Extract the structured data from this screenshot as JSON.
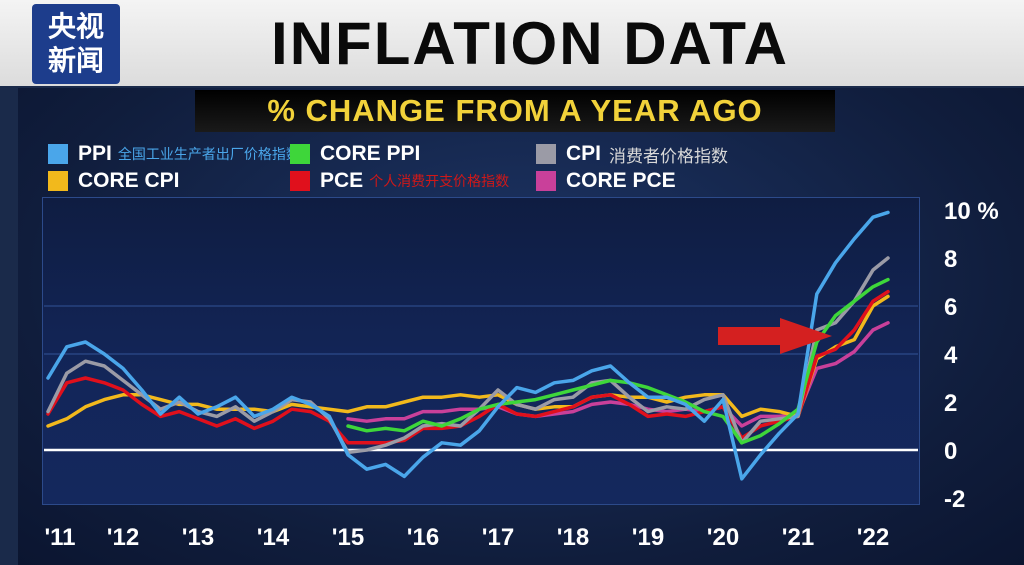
{
  "logo": {
    "line1": "央视",
    "line2": "新闻"
  },
  "title": "INFLATION DATA",
  "chart_data": {
    "type": "line",
    "title": "INFLATION DATA",
    "subtitle": "% CHANGE FROM A YEAR AGO",
    "xlabel": "",
    "ylabel": "",
    "xlim": [
      2011,
      2022.6
    ],
    "ylim": [
      -2,
      10
    ],
    "y_ticks": [
      -2,
      0,
      2,
      4,
      6,
      8,
      10
    ],
    "y_tick_labels": [
      "-2",
      "0",
      "2",
      "4",
      "6",
      "8",
      "10 %"
    ],
    "x_ticks": [
      2011,
      2012,
      2013,
      2014,
      2015,
      2016,
      2017,
      2018,
      2019,
      2020,
      2021,
      2022
    ],
    "x_tick_labels": [
      "'11",
      "'12",
      "'13",
      "'14",
      "'15",
      "'16",
      "'17",
      "'18",
      "'19",
      "'20",
      "'21",
      "'22"
    ],
    "grid": true,
    "legend_position": "top",
    "annotation": {
      "type": "arrow",
      "color": "#d42020",
      "points_to": "2021 surge"
    },
    "series": [
      {
        "name": "PPI",
        "name_zh": "全国工业生产者出厂价格指数",
        "color": "#4aa6ea",
        "x": [
          2011.0,
          2011.25,
          2011.5,
          2011.75,
          2012.0,
          2012.25,
          2012.5,
          2012.75,
          2013.0,
          2013.25,
          2013.5,
          2013.75,
          2014.0,
          2014.25,
          2014.5,
          2014.75,
          2015.0,
          2015.25,
          2015.5,
          2015.75,
          2016.0,
          2016.25,
          2016.5,
          2016.75,
          2017.0,
          2017.25,
          2017.5,
          2017.75,
          2018.0,
          2018.25,
          2018.5,
          2018.75,
          2019.0,
          2019.25,
          2019.5,
          2019.75,
          2020.0,
          2020.25,
          2020.5,
          2020.75,
          2021.0,
          2021.25,
          2021.5,
          2021.75,
          2022.0,
          2022.2
        ],
        "y": [
          3.0,
          4.3,
          4.5,
          4.0,
          3.4,
          2.5,
          1.5,
          2.2,
          1.5,
          1.8,
          2.2,
          1.4,
          1.7,
          2.2,
          1.9,
          1.4,
          -0.2,
          -0.8,
          -0.6,
          -1.1,
          -0.3,
          0.3,
          0.2,
          0.8,
          1.8,
          2.6,
          2.4,
          2.8,
          2.9,
          3.3,
          3.5,
          2.8,
          2.2,
          2.2,
          1.9,
          1.2,
          2.1,
          -1.2,
          -0.2,
          0.7,
          1.5,
          6.5,
          7.8,
          8.8,
          9.7,
          9.9
        ]
      },
      {
        "name": "CORE PPI",
        "name_zh": "",
        "color": "#3ed63a",
        "x": [
          2015.0,
          2015.25,
          2015.5,
          2015.75,
          2016.0,
          2016.25,
          2016.5,
          2016.75,
          2017.0,
          2017.25,
          2017.5,
          2017.75,
          2018.0,
          2018.25,
          2018.5,
          2018.75,
          2019.0,
          2019.25,
          2019.5,
          2019.75,
          2020.0,
          2020.25,
          2020.5,
          2020.75,
          2021.0,
          2021.25,
          2021.5,
          2021.75,
          2022.0,
          2022.2
        ],
        "y": [
          1.0,
          0.8,
          0.9,
          0.8,
          1.2,
          1.0,
          1.3,
          1.7,
          1.9,
          2.0,
          2.1,
          2.3,
          2.5,
          2.7,
          2.9,
          2.8,
          2.6,
          2.3,
          2.0,
          1.6,
          1.4,
          0.3,
          0.6,
          1.1,
          1.7,
          4.5,
          5.6,
          6.2,
          6.8,
          7.1
        ]
      },
      {
        "name": "CPI",
        "name_zh": "消费者价格指数",
        "color": "#9b9ba6",
        "x": [
          2011.0,
          2011.25,
          2011.5,
          2011.75,
          2012.0,
          2012.25,
          2012.5,
          2012.75,
          2013.0,
          2013.25,
          2013.5,
          2013.75,
          2014.0,
          2014.25,
          2014.5,
          2014.75,
          2015.0,
          2015.25,
          2015.5,
          2015.75,
          2016.0,
          2016.25,
          2016.5,
          2016.75,
          2017.0,
          2017.25,
          2017.5,
          2017.75,
          2018.0,
          2018.25,
          2018.5,
          2018.75,
          2019.0,
          2019.25,
          2019.5,
          2019.75,
          2020.0,
          2020.25,
          2020.5,
          2020.75,
          2021.0,
          2021.25,
          2021.5,
          2021.75,
          2022.0,
          2022.2
        ],
        "y": [
          1.6,
          3.2,
          3.7,
          3.5,
          2.9,
          2.3,
          1.7,
          2.0,
          1.6,
          1.4,
          1.8,
          1.2,
          1.6,
          2.1,
          2.0,
          1.3,
          -0.1,
          0.0,
          0.2,
          0.5,
          1.0,
          1.1,
          1.0,
          1.7,
          2.5,
          1.9,
          1.7,
          2.1,
          2.2,
          2.8,
          2.9,
          2.2,
          1.6,
          1.8,
          1.7,
          2.1,
          2.3,
          0.3,
          1.2,
          1.3,
          1.4,
          5.0,
          5.3,
          6.2,
          7.5,
          8.0
        ]
      },
      {
        "name": "CORE CPI",
        "name_zh": "",
        "color": "#f2b91c",
        "x": [
          2011.0,
          2011.25,
          2011.5,
          2011.75,
          2012.0,
          2012.25,
          2012.5,
          2012.75,
          2013.0,
          2013.25,
          2013.5,
          2013.75,
          2014.0,
          2014.25,
          2014.5,
          2014.75,
          2015.0,
          2015.25,
          2015.5,
          2015.75,
          2016.0,
          2016.25,
          2016.5,
          2016.75,
          2017.0,
          2017.25,
          2017.5,
          2017.75,
          2018.0,
          2018.25,
          2018.5,
          2018.75,
          2019.0,
          2019.25,
          2019.5,
          2019.75,
          2020.0,
          2020.25,
          2020.5,
          2020.75,
          2021.0,
          2021.25,
          2021.5,
          2021.75,
          2022.0,
          2022.2
        ],
        "y": [
          1.0,
          1.3,
          1.8,
          2.1,
          2.3,
          2.3,
          2.1,
          1.9,
          1.9,
          1.7,
          1.7,
          1.7,
          1.6,
          1.9,
          1.8,
          1.7,
          1.6,
          1.8,
          1.8,
          2.0,
          2.2,
          2.2,
          2.3,
          2.2,
          2.3,
          1.9,
          1.7,
          1.8,
          1.8,
          2.2,
          2.3,
          2.2,
          2.2,
          2.0,
          2.2,
          2.3,
          2.3,
          1.4,
          1.7,
          1.6,
          1.4,
          3.8,
          4.3,
          4.6,
          6.0,
          6.4
        ]
      },
      {
        "name": "PCE",
        "name_zh": "个人消费开支价格指数",
        "color": "#e0101c",
        "x": [
          2011.0,
          2011.25,
          2011.5,
          2011.75,
          2012.0,
          2012.25,
          2012.5,
          2012.75,
          2013.0,
          2013.25,
          2013.5,
          2013.75,
          2014.0,
          2014.25,
          2014.5,
          2014.75,
          2015.0,
          2015.25,
          2015.5,
          2015.75,
          2016.0,
          2016.25,
          2016.5,
          2016.75,
          2017.0,
          2017.25,
          2017.5,
          2017.75,
          2018.0,
          2018.25,
          2018.5,
          2018.75,
          2019.0,
          2019.25,
          2019.5,
          2019.75,
          2020.0,
          2020.25,
          2020.5,
          2020.75,
          2021.0,
          2021.25,
          2021.5,
          2021.75,
          2022.0,
          2022.2
        ],
        "y": [
          1.5,
          2.8,
          3.0,
          2.8,
          2.5,
          1.9,
          1.4,
          1.6,
          1.3,
          1.0,
          1.3,
          0.9,
          1.2,
          1.7,
          1.6,
          1.2,
          0.3,
          0.3,
          0.3,
          0.4,
          0.9,
          0.9,
          1.0,
          1.4,
          1.9,
          1.5,
          1.4,
          1.6,
          1.8,
          2.2,
          2.3,
          1.9,
          1.4,
          1.5,
          1.4,
          1.6,
          1.8,
          0.5,
          1.0,
          1.2,
          1.4,
          3.9,
          4.2,
          5.0,
          6.2,
          6.6
        ]
      },
      {
        "name": "CORE PCE",
        "name_zh": "",
        "color": "#c9409a",
        "x": [
          2015.0,
          2015.25,
          2015.5,
          2015.75,
          2016.0,
          2016.25,
          2016.5,
          2016.75,
          2017.0,
          2017.25,
          2017.5,
          2017.75,
          2018.0,
          2018.25,
          2018.5,
          2018.75,
          2019.0,
          2019.25,
          2019.5,
          2019.75,
          2020.0,
          2020.25,
          2020.5,
          2020.75,
          2021.0,
          2021.25,
          2021.5,
          2021.75,
          2022.0,
          2022.2
        ],
        "y": [
          1.3,
          1.2,
          1.3,
          1.3,
          1.6,
          1.6,
          1.7,
          1.7,
          1.8,
          1.5,
          1.4,
          1.5,
          1.6,
          1.9,
          2.0,
          1.9,
          1.7,
          1.6,
          1.7,
          1.6,
          1.8,
          1.0,
          1.4,
          1.4,
          1.5,
          3.4,
          3.6,
          4.1,
          5.0,
          5.3
        ]
      }
    ]
  }
}
